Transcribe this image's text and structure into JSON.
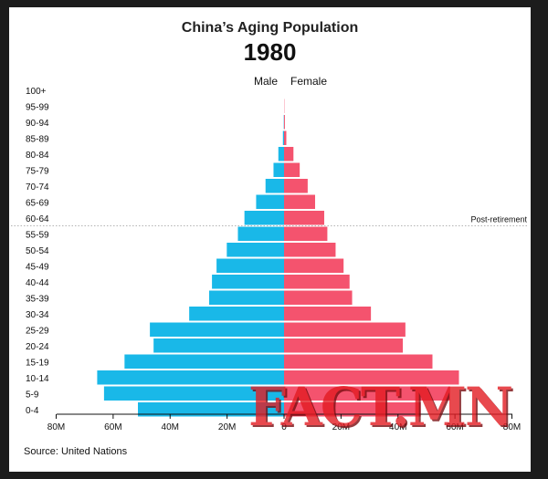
{
  "chart_data": {
    "type": "bar",
    "orientation": "horizontal-diverging",
    "title": "China’s Aging Population",
    "subtitle": "1980",
    "categories": [
      "100+",
      "95-99",
      "90-94",
      "85-89",
      "80-84",
      "75-79",
      "70-74",
      "65-69",
      "60-64",
      "55-59",
      "50-54",
      "45-49",
      "40-44",
      "35-39",
      "30-34",
      "25-29",
      "20-24",
      "15-19",
      "10-14",
      "5-9",
      "0-4"
    ],
    "series": [
      {
        "name": "Male",
        "color": "#19b8e8",
        "values": [
          0,
          0,
          0.1,
          0.4,
          2.0,
          3.7,
          6.5,
          9.8,
          13.9,
          16.2,
          20.1,
          23.7,
          25.3,
          26.3,
          33.3,
          47.1,
          45.8,
          56.0,
          65.6,
          63.2,
          51.3
        ]
      },
      {
        "name": "Female",
        "color": "#f4536e",
        "values": [
          0,
          0.1,
          0.3,
          0.8,
          3.3,
          5.5,
          8.3,
          10.9,
          14.1,
          15.2,
          18.1,
          20.9,
          23.0,
          23.9,
          30.5,
          42.6,
          41.7,
          52.1,
          61.4,
          58.3,
          48.0
        ]
      }
    ],
    "x_ticks": [
      "80M",
      "60M",
      "40M",
      "20M",
      "0",
      "20M",
      "40M",
      "60M",
      "80M"
    ],
    "xlim": [
      -80,
      80
    ],
    "units": "millions",
    "annotation": {
      "label": "Post-retirement",
      "between": [
        "60-64",
        "55-59"
      ]
    },
    "grid": false,
    "legend": "top-center"
  },
  "source": "Source: United Nations",
  "watermark": "FACT.MN"
}
